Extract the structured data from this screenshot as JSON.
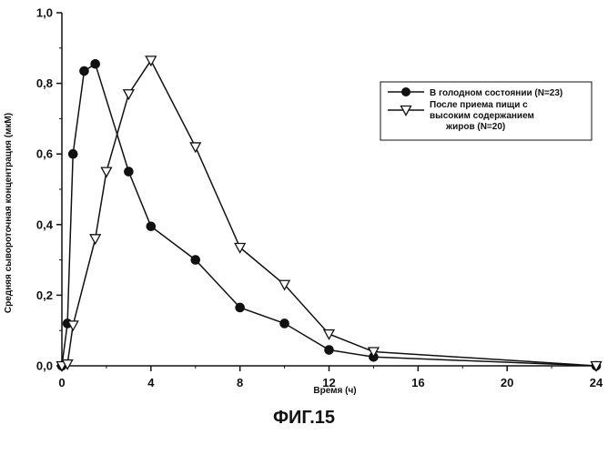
{
  "figure_caption": "ФИГ.15",
  "chart_data": {
    "type": "line",
    "xlabel": "Время (ч)",
    "ylabel": "Средняя сывороточная концентрация (мкМ)",
    "xlim": [
      0,
      24
    ],
    "ylim": [
      0,
      1.0
    ],
    "x_ticks": [
      0,
      4,
      8,
      12,
      16,
      20,
      24
    ],
    "y_ticks": [
      0,
      0.2,
      0.4,
      0.6,
      0.8,
      1.0
    ],
    "x_tick_labels": [
      "0",
      "4",
      "8",
      "12",
      "16",
      "20",
      "24"
    ],
    "y_tick_labels": [
      "0,0",
      "0,2",
      "0,4",
      "0,6",
      "0,8",
      "1,0"
    ],
    "grid": false,
    "legend_position": "top-right",
    "series": [
      {
        "name": "В голодном состоянии (N=23)",
        "marker": "filled-circle",
        "color": "#111111",
        "x": [
          0,
          0.25,
          0.5,
          1,
          1.5,
          3,
          4,
          6,
          8,
          10,
          12,
          14,
          24
        ],
        "y": [
          0.0,
          0.12,
          0.6,
          0.835,
          0.855,
          0.55,
          0.395,
          0.3,
          0.165,
          0.12,
          0.045,
          0.025,
          0.0
        ]
      },
      {
        "name": "После приема пищи с высоким содержанием жиров (N=20)",
        "legend_lines": [
          "После приема пищи с",
          "высоким содержанием",
          "жиров (N=20)"
        ],
        "marker": "open-down-triangle",
        "color": "#111111",
        "x": [
          0,
          0.25,
          0.5,
          1.5,
          2,
          3,
          4,
          6,
          8,
          10,
          12,
          14,
          24
        ],
        "y": [
          0.0,
          0.005,
          0.115,
          0.36,
          0.55,
          0.77,
          0.865,
          0.62,
          0.335,
          0.23,
          0.09,
          0.04,
          0.0
        ]
      }
    ]
  }
}
